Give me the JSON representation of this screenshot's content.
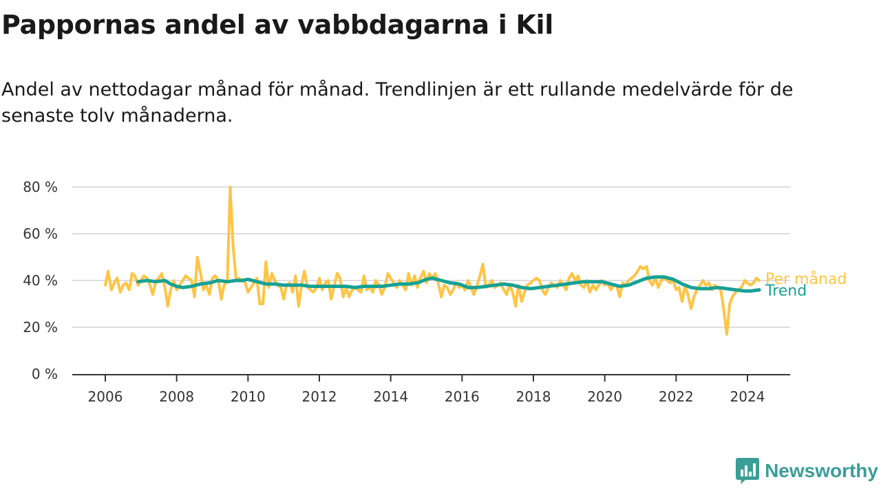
{
  "title": "Pappornas andel av vabbdagarna i Kil",
  "subtitle": "Andel av nettodagar månad för månad. Trendlinjen är ett rullande medelvärde för de senaste tolv månaderna.",
  "logo": {
    "text": "Newsworthy",
    "icon": "bar-chart-logo-icon",
    "color": "#3a9e96"
  },
  "chart_data": {
    "type": "line",
    "ylim": [
      0,
      80
    ],
    "xlim": [
      2006,
      2025.2
    ],
    "yticks": [
      0,
      20,
      40,
      60,
      80
    ],
    "ytick_labels": [
      "0 %",
      "20 %",
      "40 %",
      "60 %",
      "80 %"
    ],
    "xticks": [
      2006,
      2008,
      2010,
      2012,
      2014,
      2016,
      2018,
      2020,
      2022,
      2024
    ],
    "xtick_labels": [
      "2006",
      "2008",
      "2010",
      "2012",
      "2014",
      "2016",
      "2018",
      "2020",
      "2022",
      "2024"
    ],
    "grid": true,
    "legend": "inline-right",
    "series": [
      {
        "name": "Per månad",
        "color": "#ffc445",
        "points": [
          [
            2006.0,
            38
          ],
          [
            2006.08,
            44
          ],
          [
            2006.17,
            36
          ],
          [
            2006.25,
            39
          ],
          [
            2006.33,
            41
          ],
          [
            2006.42,
            35
          ],
          [
            2006.5,
            38
          ],
          [
            2006.58,
            39
          ],
          [
            2006.67,
            36
          ],
          [
            2006.75,
            43
          ],
          [
            2006.83,
            42
          ],
          [
            2006.92,
            38
          ],
          [
            2007.0,
            40
          ],
          [
            2007.08,
            42
          ],
          [
            2007.17,
            41
          ],
          [
            2007.25,
            38
          ],
          [
            2007.33,
            34
          ],
          [
            2007.42,
            40
          ],
          [
            2007.5,
            41
          ],
          [
            2007.58,
            43
          ],
          [
            2007.67,
            37
          ],
          [
            2007.75,
            29
          ],
          [
            2007.83,
            36
          ],
          [
            2007.92,
            40
          ],
          [
            2008.0,
            36
          ],
          [
            2008.08,
            38
          ],
          [
            2008.17,
            40
          ],
          [
            2008.25,
            42
          ],
          [
            2008.33,
            41
          ],
          [
            2008.42,
            40
          ],
          [
            2008.5,
            33
          ],
          [
            2008.58,
            50
          ],
          [
            2008.67,
            43
          ],
          [
            2008.75,
            36
          ],
          [
            2008.83,
            38
          ],
          [
            2008.92,
            34
          ],
          [
            2009.0,
            41
          ],
          [
            2009.08,
            42
          ],
          [
            2009.17,
            40
          ],
          [
            2009.25,
            32
          ],
          [
            2009.33,
            38
          ],
          [
            2009.42,
            40
          ],
          [
            2009.5,
            80
          ],
          [
            2009.58,
            55
          ],
          [
            2009.67,
            40
          ],
          [
            2009.75,
            41
          ],
          [
            2009.83,
            40
          ],
          [
            2009.92,
            39
          ],
          [
            2010.0,
            35
          ],
          [
            2010.08,
            37
          ],
          [
            2010.17,
            39
          ],
          [
            2010.25,
            41
          ],
          [
            2010.33,
            30
          ],
          [
            2010.42,
            30
          ],
          [
            2010.5,
            48
          ],
          [
            2010.58,
            37
          ],
          [
            2010.67,
            43
          ],
          [
            2010.75,
            40
          ],
          [
            2010.83,
            38
          ],
          [
            2010.92,
            37
          ],
          [
            2011.0,
            32
          ],
          [
            2011.08,
            38
          ],
          [
            2011.17,
            39
          ],
          [
            2011.25,
            35
          ],
          [
            2011.33,
            42
          ],
          [
            2011.42,
            29
          ],
          [
            2011.5,
            38
          ],
          [
            2011.58,
            44
          ],
          [
            2011.67,
            37
          ],
          [
            2011.75,
            36
          ],
          [
            2011.83,
            35
          ],
          [
            2011.92,
            37
          ],
          [
            2012.0,
            41
          ],
          [
            2012.08,
            36
          ],
          [
            2012.17,
            39
          ],
          [
            2012.25,
            40
          ],
          [
            2012.33,
            32
          ],
          [
            2012.42,
            38
          ],
          [
            2012.5,
            43
          ],
          [
            2012.58,
            41
          ],
          [
            2012.67,
            33
          ],
          [
            2012.75,
            37
          ],
          [
            2012.83,
            33
          ],
          [
            2012.92,
            36
          ],
          [
            2013.0,
            37
          ],
          [
            2013.08,
            36
          ],
          [
            2013.17,
            35
          ],
          [
            2013.25,
            42
          ],
          [
            2013.33,
            36
          ],
          [
            2013.42,
            37
          ],
          [
            2013.5,
            35
          ],
          [
            2013.58,
            40
          ],
          [
            2013.67,
            38
          ],
          [
            2013.75,
            34
          ],
          [
            2013.83,
            37
          ],
          [
            2013.92,
            43
          ],
          [
            2014.0,
            41
          ],
          [
            2014.08,
            39
          ],
          [
            2014.17,
            37
          ],
          [
            2014.25,
            40
          ],
          [
            2014.33,
            38
          ],
          [
            2014.42,
            36
          ],
          [
            2014.5,
            43
          ],
          [
            2014.58,
            38
          ],
          [
            2014.67,
            42
          ],
          [
            2014.75,
            37
          ],
          [
            2014.83,
            41
          ],
          [
            2014.92,
            44
          ],
          [
            2015.0,
            39
          ],
          [
            2015.08,
            43
          ],
          [
            2015.17,
            41
          ],
          [
            2015.25,
            43
          ],
          [
            2015.33,
            39
          ],
          [
            2015.42,
            33
          ],
          [
            2015.5,
            38
          ],
          [
            2015.58,
            37
          ],
          [
            2015.67,
            34
          ],
          [
            2015.75,
            36
          ],
          [
            2015.83,
            39
          ],
          [
            2015.92,
            37
          ],
          [
            2016.0,
            38
          ],
          [
            2016.08,
            36
          ],
          [
            2016.17,
            40
          ],
          [
            2016.25,
            37
          ],
          [
            2016.33,
            34
          ],
          [
            2016.42,
            38
          ],
          [
            2016.5,
            42
          ],
          [
            2016.58,
            47
          ],
          [
            2016.67,
            37
          ],
          [
            2016.75,
            38
          ],
          [
            2016.83,
            40
          ],
          [
            2016.92,
            37
          ],
          [
            2017.0,
            38
          ],
          [
            2017.08,
            39
          ],
          [
            2017.17,
            36
          ],
          [
            2017.25,
            34
          ],
          [
            2017.33,
            38
          ],
          [
            2017.42,
            35
          ],
          [
            2017.5,
            29
          ],
          [
            2017.58,
            38
          ],
          [
            2017.67,
            31
          ],
          [
            2017.75,
            35
          ],
          [
            2017.83,
            38
          ],
          [
            2017.92,
            39
          ],
          [
            2018.0,
            40
          ],
          [
            2018.08,
            41
          ],
          [
            2018.17,
            40
          ],
          [
            2018.25,
            36
          ],
          [
            2018.33,
            34
          ],
          [
            2018.42,
            37
          ],
          [
            2018.5,
            39
          ],
          [
            2018.58,
            38
          ],
          [
            2018.67,
            37
          ],
          [
            2018.75,
            40
          ],
          [
            2018.83,
            38
          ],
          [
            2018.92,
            36
          ],
          [
            2019.0,
            41
          ],
          [
            2019.08,
            43
          ],
          [
            2019.17,
            40
          ],
          [
            2019.25,
            42
          ],
          [
            2019.33,
            38
          ],
          [
            2019.42,
            37
          ],
          [
            2019.5,
            40
          ],
          [
            2019.58,
            35
          ],
          [
            2019.67,
            38
          ],
          [
            2019.75,
            36
          ],
          [
            2019.83,
            38
          ],
          [
            2019.92,
            40
          ],
          [
            2020.0,
            38
          ],
          [
            2020.08,
            39
          ],
          [
            2020.17,
            36
          ],
          [
            2020.25,
            38
          ],
          [
            2020.33,
            38
          ],
          [
            2020.42,
            33
          ],
          [
            2020.5,
            39
          ],
          [
            2020.58,
            38
          ],
          [
            2020.67,
            40
          ],
          [
            2020.75,
            41
          ],
          [
            2020.83,
            42
          ],
          [
            2020.92,
            44
          ],
          [
            2021.0,
            46
          ],
          [
            2021.08,
            45
          ],
          [
            2021.17,
            46
          ],
          [
            2021.25,
            40
          ],
          [
            2021.33,
            38
          ],
          [
            2021.42,
            41
          ],
          [
            2021.5,
            37
          ],
          [
            2021.58,
            40
          ],
          [
            2021.67,
            41
          ],
          [
            2021.75,
            40
          ],
          [
            2021.83,
            39
          ],
          [
            2021.92,
            40
          ],
          [
            2022.0,
            36
          ],
          [
            2022.08,
            37
          ],
          [
            2022.17,
            31
          ],
          [
            2022.25,
            38
          ],
          [
            2022.33,
            34
          ],
          [
            2022.42,
            28
          ],
          [
            2022.5,
            33
          ],
          [
            2022.58,
            36
          ],
          [
            2022.67,
            38
          ],
          [
            2022.75,
            40
          ],
          [
            2022.83,
            38
          ],
          [
            2022.92,
            39
          ],
          [
            2023.0,
            36
          ],
          [
            2023.08,
            38
          ],
          [
            2023.17,
            37
          ],
          [
            2023.25,
            36
          ],
          [
            2023.33,
            28
          ],
          [
            2023.42,
            17
          ],
          [
            2023.5,
            30
          ],
          [
            2023.58,
            33
          ],
          [
            2023.67,
            35
          ],
          [
            2023.75,
            36
          ],
          [
            2023.83,
            37
          ],
          [
            2023.92,
            40
          ],
          [
            2024.0,
            39
          ],
          [
            2024.08,
            38
          ],
          [
            2024.17,
            39
          ],
          [
            2024.25,
            41
          ],
          [
            2024.33,
            40
          ]
        ]
      },
      {
        "name": "Trend",
        "color": "#18a195",
        "points": [
          [
            2006.92,
            39.5
          ],
          [
            2007.17,
            40
          ],
          [
            2007.42,
            39.5
          ],
          [
            2007.67,
            40
          ],
          [
            2007.83,
            38.5
          ],
          [
            2008.0,
            37.5
          ],
          [
            2008.17,
            37
          ],
          [
            2008.42,
            37.5
          ],
          [
            2008.67,
            38.5
          ],
          [
            2008.92,
            39
          ],
          [
            2009.17,
            40
          ],
          [
            2009.42,
            39.5
          ],
          [
            2009.67,
            40
          ],
          [
            2009.83,
            40
          ],
          [
            2010.0,
            40.5
          ],
          [
            2010.25,
            39.5
          ],
          [
            2010.5,
            38.5
          ],
          [
            2010.75,
            38.5
          ],
          [
            2011.0,
            38
          ],
          [
            2011.25,
            38
          ],
          [
            2011.5,
            38
          ],
          [
            2011.75,
            37.5
          ],
          [
            2012.0,
            37.5
          ],
          [
            2012.25,
            37.5
          ],
          [
            2012.5,
            37.5
          ],
          [
            2012.75,
            37.5
          ],
          [
            2013.0,
            37
          ],
          [
            2013.25,
            37.5
          ],
          [
            2013.5,
            37.5
          ],
          [
            2013.75,
            37.5
          ],
          [
            2014.0,
            38
          ],
          [
            2014.25,
            38.5
          ],
          [
            2014.5,
            38.5
          ],
          [
            2014.75,
            39
          ],
          [
            2015.0,
            40.5
          ],
          [
            2015.17,
            41
          ],
          [
            2015.42,
            40
          ],
          [
            2015.67,
            39
          ],
          [
            2015.92,
            38.5
          ],
          [
            2016.17,
            37
          ],
          [
            2016.42,
            37
          ],
          [
            2016.67,
            37.5
          ],
          [
            2016.92,
            38
          ],
          [
            2017.17,
            38.5
          ],
          [
            2017.42,
            38
          ],
          [
            2017.67,
            37
          ],
          [
            2017.92,
            36.5
          ],
          [
            2018.17,
            37
          ],
          [
            2018.42,
            37.5
          ],
          [
            2018.67,
            38
          ],
          [
            2018.92,
            38.5
          ],
          [
            2019.17,
            39
          ],
          [
            2019.42,
            39.5
          ],
          [
            2019.67,
            39.5
          ],
          [
            2019.92,
            39.5
          ],
          [
            2020.17,
            38.5
          ],
          [
            2020.42,
            37.5
          ],
          [
            2020.67,
            38
          ],
          [
            2020.92,
            39.5
          ],
          [
            2021.17,
            41
          ],
          [
            2021.42,
            41.5
          ],
          [
            2021.67,
            41.5
          ],
          [
            2021.92,
            40.5
          ],
          [
            2022.17,
            38.5
          ],
          [
            2022.42,
            37
          ],
          [
            2022.67,
            36.5
          ],
          [
            2022.92,
            36.5
          ],
          [
            2023.17,
            37
          ],
          [
            2023.42,
            36.5
          ],
          [
            2023.67,
            36
          ],
          [
            2023.92,
            35.5
          ],
          [
            2024.08,
            35.5
          ],
          [
            2024.33,
            36
          ]
        ]
      }
    ]
  }
}
